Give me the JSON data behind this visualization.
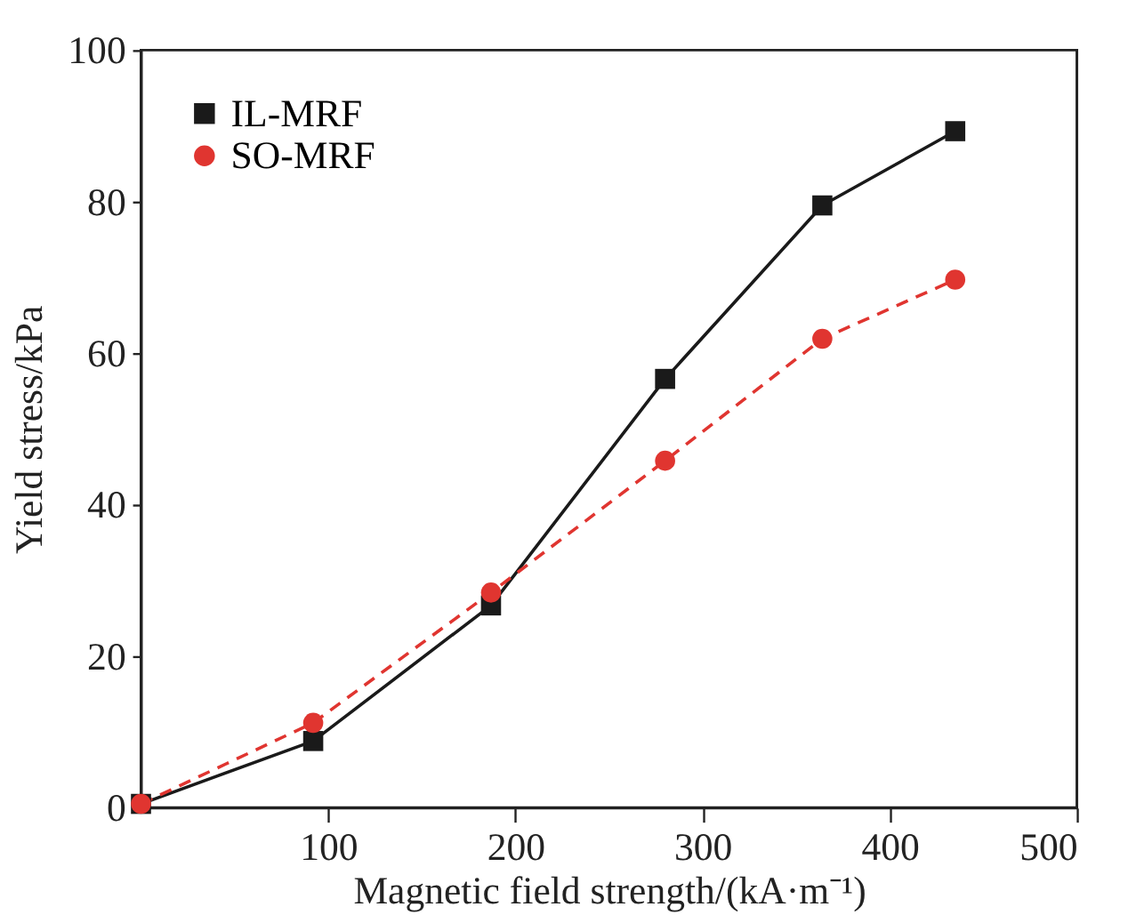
{
  "chart_data": {
    "type": "line",
    "xlabel": "Magnetic field strength/(kA·m⁻¹)",
    "ylabel": "Yield stress/kPa",
    "xlim": [
      0,
      500
    ],
    "xticks": [
      100,
      200,
      300,
      400,
      500
    ],
    "ylim": [
      0,
      100
    ],
    "yticks": [
      0,
      20,
      40,
      60,
      80,
      100
    ],
    "grid": false,
    "legend": "top left",
    "series": [
      {
        "name": "IL-MRF",
        "color": "#1a1a1a",
        "marker": "square",
        "line_style": "solid",
        "x": [
          0,
          92,
          187,
          280,
          364,
          435
        ],
        "values": [
          0.5,
          8.8,
          26.7,
          56.6,
          79.5,
          89.3
        ]
      },
      {
        "name": "SO-MRF",
        "color": "#e03530",
        "marker": "circle",
        "line_style": "dashed",
        "x": [
          0,
          92,
          187,
          280,
          364,
          435
        ],
        "values": [
          0.5,
          11.2,
          28.4,
          45.8,
          61.9,
          69.7
        ]
      }
    ]
  }
}
